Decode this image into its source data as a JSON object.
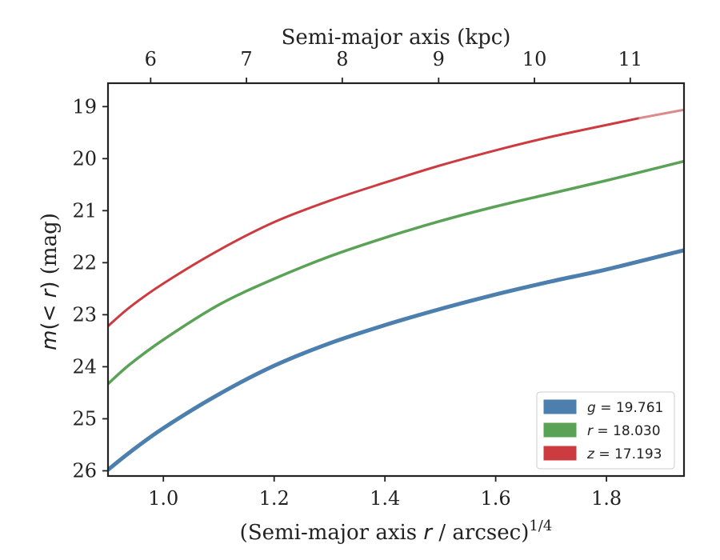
{
  "chart_data": {
    "type": "line",
    "x_axis": {
      "label_prefix": "(Semi-major axis ",
      "label_var": "r",
      "label_suffix": " / arcsec)",
      "label_sup": "1/4",
      "range": [
        0.9,
        1.94
      ],
      "ticks": [
        1.0,
        1.2,
        1.4,
        1.6,
        1.8
      ],
      "tick_labels": [
        "1.0",
        "1.2",
        "1.4",
        "1.6",
        "1.8"
      ]
    },
    "x2_axis": {
      "label": "Semi-major axis (kpc)",
      "ticks_at_x": [
        0.977,
        1.15,
        1.323,
        1.497,
        1.67,
        1.843
      ],
      "tick_labels": [
        "6",
        "7",
        "8",
        "9",
        "10",
        "11"
      ]
    },
    "y_axis": {
      "label_var": "m",
      "label_paren": "(< ",
      "label_var2": "r",
      "label_close": ")",
      "label_unit": " (mag)",
      "range": [
        26.1,
        18.55
      ],
      "inverted": true,
      "ticks": [
        19,
        20,
        21,
        22,
        23,
        24,
        25,
        26
      ],
      "tick_labels": [
        "19",
        "20",
        "21",
        "22",
        "23",
        "24",
        "25",
        "26"
      ]
    },
    "grid": false,
    "legend_position": "bottom-right",
    "series": [
      {
        "name_var": "g",
        "name_value": " = 19.761",
        "color": "#4c7fae",
        "width": 5,
        "x": [
          0.9,
          0.94,
          1.0,
          1.1,
          1.2,
          1.3,
          1.4,
          1.5,
          1.6,
          1.7,
          1.8,
          1.94
        ],
        "y": [
          25.98,
          25.64,
          25.18,
          24.53,
          23.98,
          23.55,
          23.2,
          22.89,
          22.61,
          22.36,
          22.13,
          21.76
        ]
      },
      {
        "name_var": "r",
        "name_value": " = 18.030",
        "color": "#5aa356",
        "width": 3.5,
        "x": [
          0.9,
          0.94,
          1.0,
          1.1,
          1.2,
          1.3,
          1.4,
          1.5,
          1.6,
          1.7,
          1.8,
          1.94
        ],
        "y": [
          24.33,
          23.95,
          23.48,
          22.81,
          22.31,
          21.88,
          21.52,
          21.2,
          20.92,
          20.67,
          20.42,
          20.05
        ]
      },
      {
        "name_var": "z",
        "name_value": " = 17.193",
        "color": "#cc3b3f",
        "width": 3,
        "x": [
          0.9,
          0.94,
          1.0,
          1.1,
          1.2,
          1.3,
          1.4,
          1.5,
          1.6,
          1.7,
          1.86
        ],
        "y": [
          23.22,
          22.85,
          22.4,
          21.76,
          21.22,
          20.81,
          20.46,
          20.13,
          19.84,
          19.58,
          19.22
        ],
        "extension": {
          "color": "#dc8a8c",
          "x": [
            1.86,
            1.94
          ],
          "y": [
            19.22,
            19.06
          ]
        }
      }
    ]
  }
}
